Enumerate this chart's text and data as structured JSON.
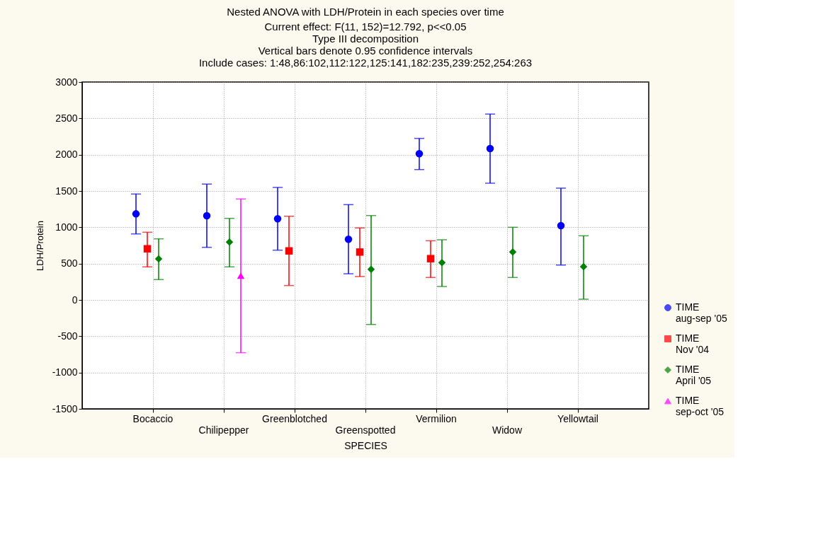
{
  "chart_data": {
    "type": "scatter",
    "title": "Nested ANOVA with LDH/Protein in each species over time",
    "subtitle": "Current effect: F(11, 152)=12.792, p<<0.05\nType III decomposition\nVertical bars denote 0.95 confidence intervals\nInclude cases: 1:48,86:102,112:122,125:141,182:235,239:252,254:263",
    "xlabel": "SPECIES",
    "ylabel": "LDH/Protein",
    "categories": [
      "Bocaccio",
      "Chilipepper",
      "Greenblotched",
      "Greenspotted",
      "Vermilion",
      "Widow",
      "Yellowtail"
    ],
    "series": [
      {
        "name": "TIME aug-sep '05",
        "color": "#0000ff",
        "marker": "circle",
        "values": [
          1185,
          1159,
          1117,
          835,
          2013,
          2084,
          1023
        ],
        "errors": [
          [
            909,
            1458
          ],
          [
            724,
            1595
          ],
          [
            685,
            1549
          ],
          [
            360,
            1312
          ],
          [
            1795,
            2224
          ],
          [
            1607,
            2559
          ],
          [
            480,
            1539
          ]
        ]
      },
      {
        "name": "TIME Nov '04",
        "color": "#ff0000",
        "marker": "square",
        "values": [
          704,
          null,
          675,
          659,
          568,
          null,
          null
        ],
        "errors": [
          [
            455,
            932
          ],
          null,
          [
            198,
            1152
          ],
          [
            322,
            991
          ],
          [
            309,
            815
          ],
          null,
          null
        ]
      },
      {
        "name": "TIME April '05",
        "color": "#008000",
        "marker": "diamond",
        "values": [
          565,
          796,
          null,
          422,
          513,
          659,
          458
        ],
        "errors": [
          [
            280,
            841
          ],
          [
            455,
            1123
          ],
          null,
          [
            -338,
            1162
          ],
          [
            185,
            828
          ],
          [
            309,
            1000
          ],
          [
            10,
            883
          ]
        ]
      },
      {
        "name": "TIME sep-oct '05",
        "color": "#ff00ff",
        "marker": "triangle",
        "values": [
          null,
          334,
          null,
          null,
          null,
          null,
          null
        ],
        "errors": [
          null,
          [
            -727,
            1390
          ],
          null,
          null,
          null,
          null,
          null
        ]
      }
    ],
    "ylim": [
      -1500,
      3000
    ],
    "yticks": [
      -1500,
      -1000,
      -500,
      0,
      500,
      1000,
      1500,
      2000,
      2500,
      3000
    ],
    "grid": true,
    "legend": "bottom right"
  }
}
